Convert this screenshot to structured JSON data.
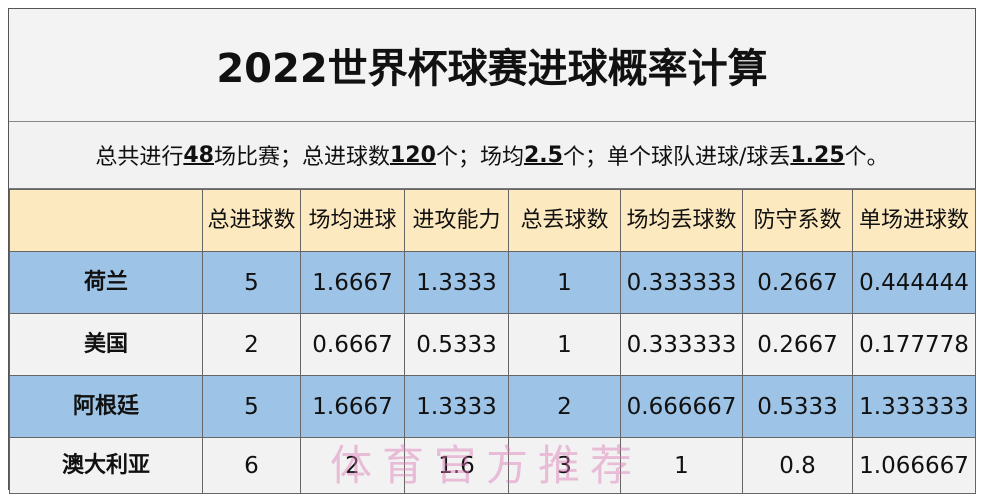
{
  "title": "2022世界杯球赛进球概率计算",
  "summary": {
    "p1": "总共进行",
    "matches": "48",
    "p2": "场比赛；总进球数",
    "goals": "120",
    "p3": "个；场均",
    "avg": "2.5",
    "p4": "个；单个球队进球/球丢",
    "team_avg": "1.25",
    "p5": "个。"
  },
  "headers": [
    "",
    "总进球数",
    "场均进球",
    "进攻能力",
    "总丢球数",
    "场均丢球数",
    "防守系数",
    "单场进球数"
  ],
  "rows": [
    [
      "荷兰",
      "5",
      "1.6667",
      "1.3333",
      "1",
      "0.333333",
      "0.2667",
      "0.444444"
    ],
    [
      "美国",
      "2",
      "0.6667",
      "0.5333",
      "1",
      "0.333333",
      "0.2667",
      "0.177778"
    ],
    [
      "阿根廷",
      "5",
      "1.6667",
      "1.3333",
      "2",
      "0.666667",
      "0.5333",
      "1.333333"
    ],
    [
      "澳大利亚",
      "6",
      "2",
      "1.6",
      "3",
      "1",
      "0.8",
      "1.066667"
    ]
  ],
  "watermark": "体育官方推荐",
  "colors": {
    "header_bg": "#fde9bf",
    "blue_row": "#9dc3e6",
    "light_row": "#f2f2f2",
    "watermark": "#dc78b4"
  }
}
